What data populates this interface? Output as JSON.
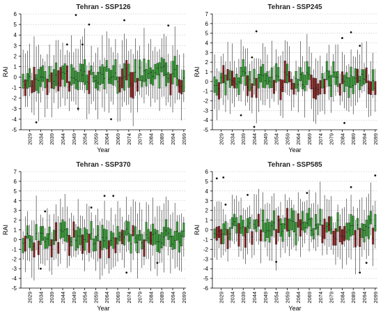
{
  "chart_data": [
    {
      "type": "box",
      "title": "Tehran - SSP126",
      "xlabel": "Year",
      "ylabel": "RAI",
      "ylim": [
        -5,
        6
      ],
      "yticks": [
        -5,
        -4,
        -3,
        -2,
        -1,
        0,
        1,
        2,
        3,
        4,
        5,
        6
      ],
      "xlim": [
        2025,
        2100
      ],
      "xticks": [
        2029,
        2034,
        2039,
        2044,
        2049,
        2054,
        2059,
        2064,
        2069,
        2074,
        2079,
        2084,
        2089,
        2094,
        2099
      ],
      "grid": "horizontal dotted",
      "box_colors": {
        "normal": "#2ea02e",
        "dry": "#8b1a1a"
      },
      "seed": 11,
      "outliers": [
        {
          "x": 2050,
          "y": 5.9
        },
        {
          "x": 2072,
          "y": 5.4
        },
        {
          "x": 2056,
          "y": 5.0
        },
        {
          "x": 2092,
          "y": 4.9
        },
        {
          "x": 2046,
          "y": 3.1
        },
        {
          "x": 2053,
          "y": 3.1
        },
        {
          "x": 2032,
          "y": -4.3
        },
        {
          "x": 2066,
          "y": -4.0
        },
        {
          "x": 2051,
          "y": -3.0
        }
      ]
    },
    {
      "type": "box",
      "title": "Tehran - SSP245",
      "xlabel": "Year",
      "ylabel": "RAI",
      "ylim": [
        -5,
        7
      ],
      "yticks": [
        -5,
        -4,
        -3,
        -2,
        -1,
        0,
        1,
        2,
        3,
        4,
        5,
        6,
        7
      ],
      "xlim": [
        2025,
        2100
      ],
      "xticks": [
        2029,
        2034,
        2039,
        2044,
        2049,
        2054,
        2059,
        2064,
        2069,
        2074,
        2079,
        2084,
        2089,
        2094,
        2099
      ],
      "grid": "horizontal dotted",
      "box_colors": {
        "normal": "#2ea02e",
        "dry": "#8b1a1a"
      },
      "seed": 23,
      "outliers": [
        {
          "x": 2045,
          "y": 5.2
        },
        {
          "x": 2088,
          "y": 5.1
        },
        {
          "x": 2084,
          "y": 4.5
        },
        {
          "x": 2092,
          "y": 3.7
        },
        {
          "x": 2043,
          "y": 2.5
        },
        {
          "x": 2044,
          "y": -4.7
        },
        {
          "x": 2085,
          "y": -4.3
        },
        {
          "x": 2038,
          "y": -3.5
        }
      ]
    },
    {
      "type": "box",
      "title": "Tehran - SSP370",
      "xlabel": "Year",
      "ylabel": "RAI",
      "ylim": [
        -5,
        7
      ],
      "yticks": [
        -5,
        -4,
        -3,
        -2,
        -1,
        0,
        1,
        2,
        3,
        4,
        5,
        6,
        7
      ],
      "xlim": [
        2025,
        2100
      ],
      "xticks": [
        2029,
        2034,
        2039,
        2044,
        2049,
        2054,
        2059,
        2064,
        2069,
        2074,
        2079,
        2084,
        2089,
        2094,
        2099
      ],
      "grid": "horizontal dotted",
      "box_colors": {
        "normal": "#2ea02e",
        "dry": "#8b1a1a"
      },
      "seed": 37,
      "outliers": [
        {
          "x": 2063,
          "y": 4.5
        },
        {
          "x": 2067,
          "y": 4.5
        },
        {
          "x": 2057,
          "y": 3.3
        },
        {
          "x": 2036,
          "y": 2.9
        },
        {
          "x": 2073,
          "y": -3.4
        },
        {
          "x": 2034,
          "y": -3.0
        },
        {
          "x": 2087,
          "y": -2.4
        }
      ]
    },
    {
      "type": "box",
      "title": "Tehran - SSP585",
      "xlabel": "Year",
      "ylabel": "RAI",
      "ylim": [
        -6,
        6
      ],
      "yticks": [
        -6,
        -5,
        -4,
        -3,
        -2,
        -1,
        0,
        1,
        2,
        3,
        4,
        5,
        6
      ],
      "xlim": [
        2025,
        2100
      ],
      "xticks": [
        2029,
        2034,
        2039,
        2044,
        2049,
        2054,
        2059,
        2064,
        2069,
        2074,
        2079,
        2084,
        2089,
        2094,
        2099
      ],
      "grid": "horizontal dotted",
      "box_colors": {
        "normal": "#2ea02e",
        "dry": "#8b1a1a"
      },
      "seed": 53,
      "outliers": [
        {
          "x": 2099,
          "y": 5.6
        },
        {
          "x": 2027,
          "y": 5.3
        },
        {
          "x": 2030,
          "y": 5.4
        },
        {
          "x": 2068,
          "y": 3.8
        },
        {
          "x": 2088,
          "y": 4.4
        },
        {
          "x": 2041,
          "y": 3.6
        },
        {
          "x": 2031,
          "y": 2.6
        },
        {
          "x": 2092,
          "y": -4.4
        },
        {
          "x": 2095,
          "y": -3.4
        },
        {
          "x": 2054,
          "y": -3.3
        }
      ]
    }
  ]
}
